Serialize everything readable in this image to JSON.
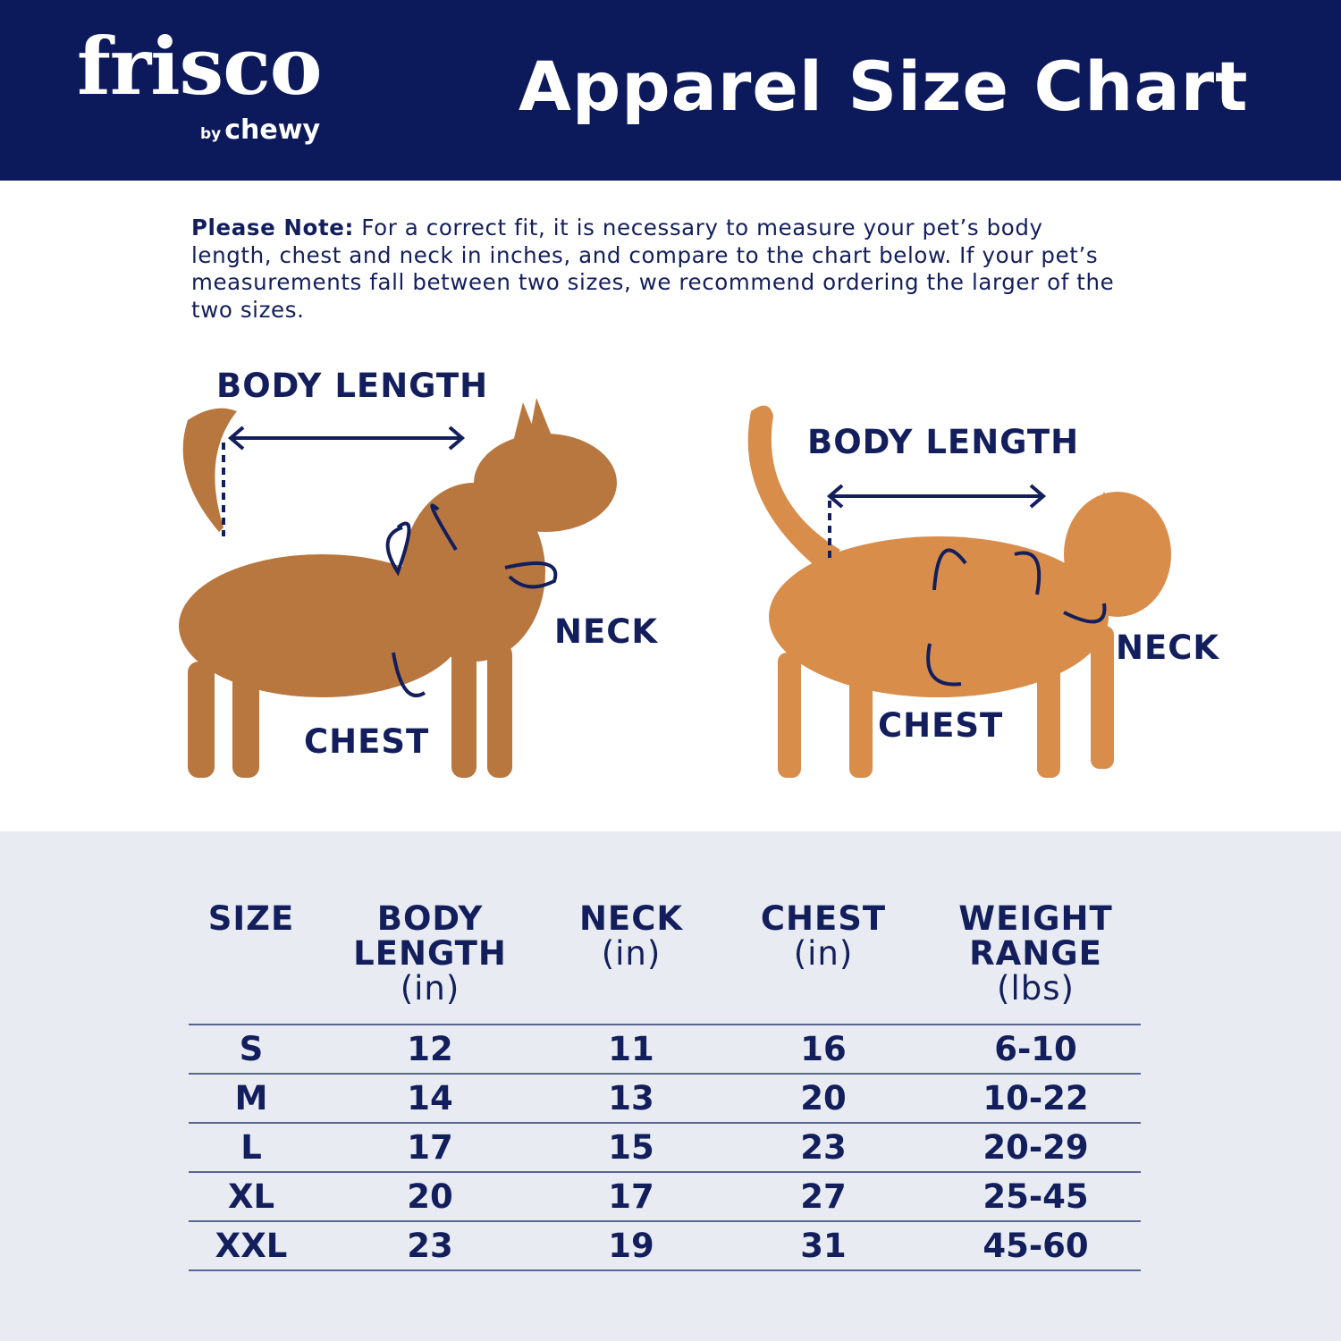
{
  "header": {
    "logo_text": "frisco",
    "logo_sub_by": "by",
    "logo_sub_brand": "chewy",
    "title": "Apparel Size Chart",
    "background_color": "#0c1a5c"
  },
  "note": {
    "label": "Please Note:",
    "text": " For a correct fit, it is necessary to measure your pet’s body length, chest and neck in inches, and compare to the chart below. If your pet’s measurements fall between two sizes, we recommend ordering the larger of the two sizes."
  },
  "diagram": {
    "dog": {
      "body_length": "BODY LENGTH",
      "neck": "NECK",
      "chest": "CHEST"
    },
    "cat": {
      "body_length": "BODY LENGTH",
      "neck": "NECK",
      "chest": "CHEST"
    }
  },
  "table": {
    "headers": [
      {
        "title": "SIZE",
        "unit": ""
      },
      {
        "title": "BODY LENGTH",
        "unit": "(in)"
      },
      {
        "title": "NECK",
        "unit": "(in)"
      },
      {
        "title": "CHEST",
        "unit": "(in)"
      },
      {
        "title": "WEIGHT RANGE",
        "unit": "(lbs)"
      }
    ],
    "rows": [
      [
        "S",
        "12",
        "11",
        "16",
        "6-10"
      ],
      [
        "M",
        "14",
        "13",
        "20",
        "10-22"
      ],
      [
        "L",
        "17",
        "15",
        "23",
        "20-29"
      ],
      [
        "XL",
        "20",
        "17",
        "27",
        "25-45"
      ],
      [
        "XXL",
        "23",
        "19",
        "31",
        "45-60"
      ]
    ]
  },
  "colors": {
    "navy": "#131e5c",
    "table_bg": "#e8ecf2"
  }
}
